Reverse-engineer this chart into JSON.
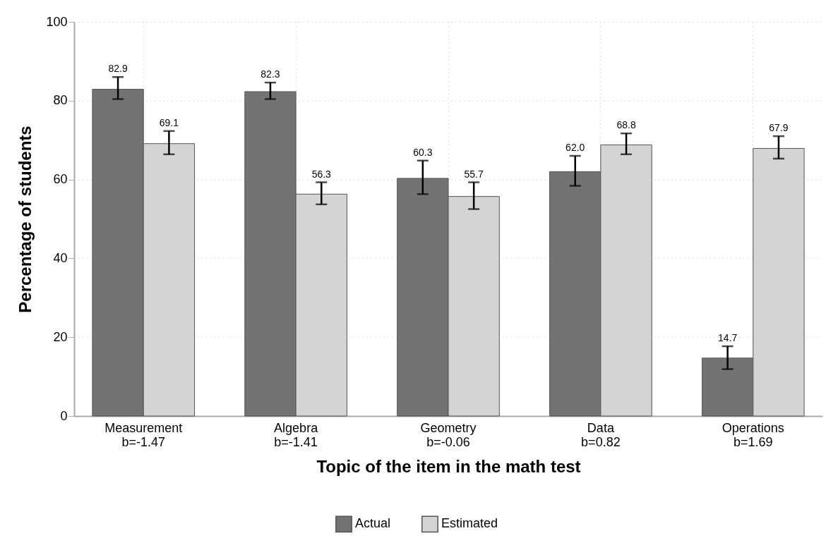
{
  "chart_data": {
    "type": "bar",
    "categories": [
      "Measurement\nb=-1.47",
      "Algebra\nb=-1.41",
      "Geometry\nb=-0.06",
      "Data\nb=0.82",
      "Operations\nb=1.69"
    ],
    "series": [
      {
        "name": "Actual",
        "color": "#737373",
        "values": [
          82.9,
          82.3,
          60.3,
          62.0,
          14.7
        ],
        "value_labels": [
          "82.9",
          "82.3",
          "60.3",
          "62.0",
          "14.7"
        ],
        "errors": [
          [
            80.4,
            86.0
          ],
          [
            80.4,
            84.6
          ],
          [
            56.3,
            64.8
          ],
          [
            58.4,
            66.0
          ],
          [
            11.9,
            17.7
          ]
        ]
      },
      {
        "name": "Estimated",
        "color": "#d4d4d4",
        "values": [
          69.1,
          56.3,
          55.7,
          68.8,
          67.9
        ],
        "value_labels": [
          "69.1",
          "56.3",
          "55.7",
          "68.8",
          "67.9"
        ],
        "errors": [
          [
            66.4,
            72.3
          ],
          [
            53.7,
            59.3
          ],
          [
            52.5,
            59.3
          ],
          [
            66.4,
            71.7
          ],
          [
            65.3,
            71.0
          ]
        ]
      }
    ],
    "xlabel": "Topic of the item in the math test",
    "ylabel": "Percentage of students",
    "ylim": [
      0,
      100
    ],
    "yticks": [
      0,
      20,
      40,
      60,
      80,
      100
    ],
    "grid": true,
    "legend": "bottom"
  }
}
